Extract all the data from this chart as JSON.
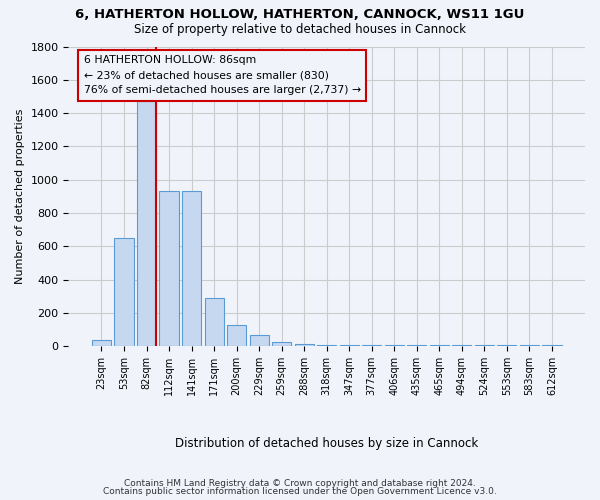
{
  "title1": "6, HATHERTON HOLLOW, HATHERTON, CANNOCK, WS11 1GU",
  "title2": "Size of property relative to detached houses in Cannock",
  "xlabel": "Distribution of detached houses by size in Cannock",
  "ylabel": "Number of detached properties",
  "bar_color": "#c5d8f0",
  "bar_edge_color": "#5a9bd5",
  "categories": [
    "23sqm",
    "53sqm",
    "82sqm",
    "112sqm",
    "141sqm",
    "171sqm",
    "200sqm",
    "229sqm",
    "259sqm",
    "288sqm",
    "318sqm",
    "347sqm",
    "377sqm",
    "406sqm",
    "435sqm",
    "465sqm",
    "494sqm",
    "524sqm",
    "553sqm",
    "583sqm",
    "612sqm"
  ],
  "values": [
    40,
    650,
    1475,
    935,
    935,
    290,
    125,
    65,
    25,
    15,
    10,
    5,
    5,
    5,
    5,
    5,
    5,
    5,
    5,
    5,
    5
  ],
  "ylim": [
    0,
    1800
  ],
  "yticks": [
    0,
    200,
    400,
    600,
    800,
    1000,
    1200,
    1400,
    1600,
    1800
  ],
  "vline_color": "#cc0000",
  "annotation_text": "6 HATHERTON HOLLOW: 86sqm\n← 23% of detached houses are smaller (830)\n76% of semi-detached houses are larger (2,737) →",
  "annotation_box_color": "#cc0000",
  "footer1": "Contains HM Land Registry data © Crown copyright and database right 2024.",
  "footer2": "Contains public sector information licensed under the Open Government Licence v3.0.",
  "background_color": "#f0f4fa",
  "grid_color": "#cccccc"
}
